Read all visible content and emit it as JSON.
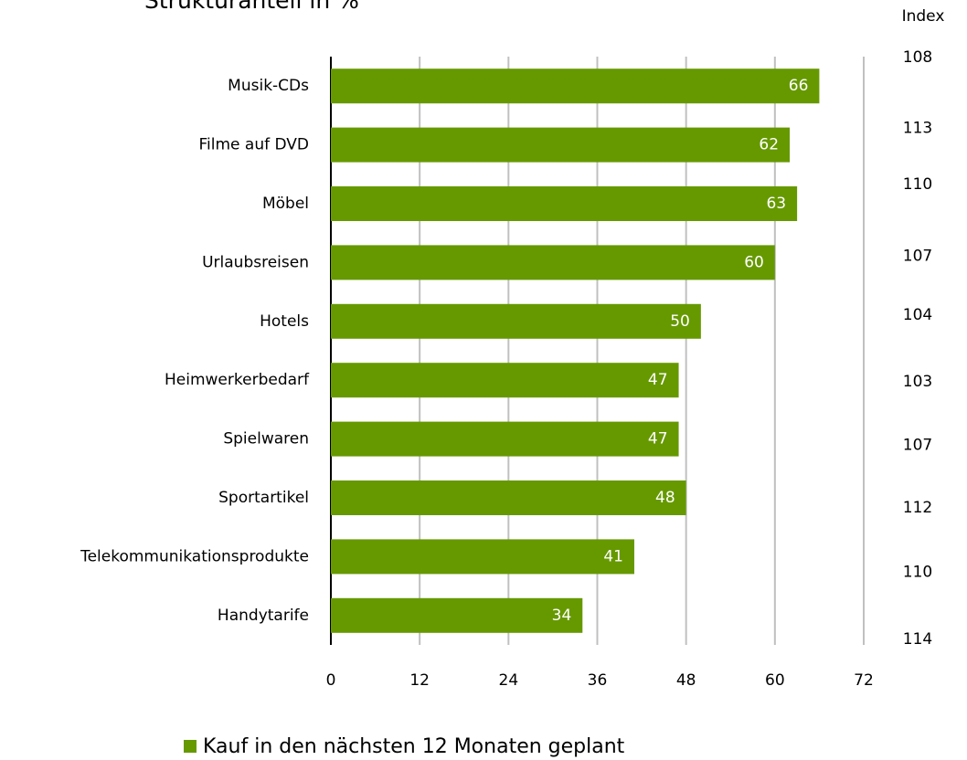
{
  "chart_data": {
    "type": "bar",
    "orientation": "horizontal",
    "title": "Strukturanteil in %",
    "categories": [
      "Musik-CDs",
      "Filme auf DVD",
      "Möbel",
      "Urlaubsreisen",
      "Hotels",
      "Heimwerkerbedarf",
      "Spielwaren",
      "Sportartikel",
      "Telekommunikationsprodukte",
      "Handytarife"
    ],
    "series": [
      {
        "name": "Kauf in den nächsten 12 Monaten geplant",
        "color": "#669900",
        "values": [
          66,
          62,
          63,
          60,
          50,
          47,
          47,
          48,
          41,
          34
        ]
      }
    ],
    "xlim": [
      0,
      72
    ],
    "xticks": [
      0,
      12,
      24,
      36,
      48,
      60,
      72
    ],
    "grid": true,
    "index_label": "Index",
    "index_values": [
      108,
      113,
      110,
      107,
      104,
      103,
      107,
      112,
      110,
      114
    ],
    "legend": "bottom"
  }
}
